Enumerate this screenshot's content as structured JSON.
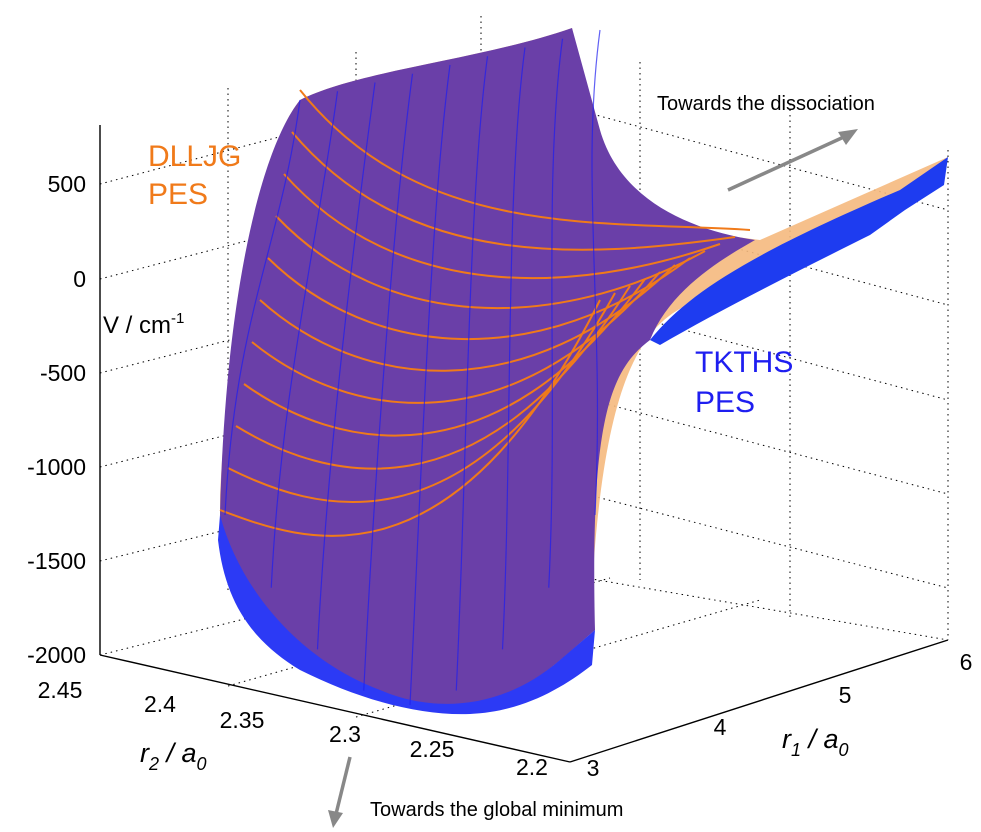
{
  "chart_data": {
    "type": "surface",
    "zlabel": "V / cm",
    "zlabel_sup": "-1",
    "xlabel_main": "r",
    "xlabel_sub": "1",
    "xlabel_rest": " / a",
    "xlabel_sub2": "0",
    "ylabel_main": "r",
    "ylabel_sub": "2",
    "ylabel_rest": " / a",
    "ylabel_sub2": "0",
    "z_ticks": [
      "500",
      "0",
      "-500",
      "-1000",
      "-1500",
      "-2000"
    ],
    "z_tick_values": [
      500,
      0,
      -500,
      -1000,
      -1500,
      -2000
    ],
    "r1_ticks": [
      "3",
      "4",
      "5",
      "6"
    ],
    "r2_ticks": [
      "2.45",
      "2.4",
      "2.35",
      "2.3",
      "2.25",
      "2.2"
    ],
    "zlim": [
      -2000,
      500
    ],
    "r1_range": [
      3,
      6
    ],
    "r2_range": [
      2.2,
      2.45
    ],
    "grid": true,
    "series": [
      {
        "name": "DLLJG\nPES",
        "label_line1": "DLLJG",
        "label_line2": "PES",
        "color": "#F07A1A"
      },
      {
        "name": "TKTHS\nPES",
        "label_line1": "TKTHS",
        "label_line2": "PES",
        "color": "#1E1EF0"
      }
    ],
    "annotations": {
      "dissociation": "Towards the dissociation",
      "global_min": "Towards the global minimum"
    },
    "surface_color": "#6A3FA8"
  }
}
